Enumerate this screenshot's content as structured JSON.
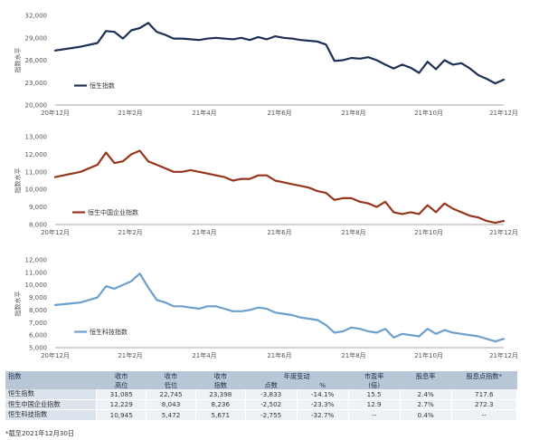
{
  "colors": {
    "hsi": "#1d2f55",
    "hscei": "#96341c",
    "hstech": "#6d9fcd",
    "axis": "#8a8a8a",
    "header_bg": "#b9c6d6",
    "label_bg": "#dbe3ed",
    "cell_bg": "#eef2f7"
  },
  "chart_data": [
    {
      "type": "line",
      "ylabel": "指数水平",
      "ylim": [
        20000,
        32000
      ],
      "yticks": [
        "32,000",
        "29,000",
        "26,000",
        "23,000",
        "20,000"
      ],
      "xticks": [
        "20年12月",
        "21年2月",
        "21年4月",
        "21年6月",
        "21年8月",
        "21年10月",
        "21年12月"
      ],
      "legend": "top-left",
      "grid": false,
      "series": [
        {
          "name": "恒生指数",
          "color": "#1d2f55",
          "x": [
            0,
            3,
            5,
            6,
            7,
            8,
            9,
            10,
            11,
            12,
            13,
            14,
            15,
            16,
            17,
            18,
            19,
            20,
            21,
            22,
            23,
            24,
            25,
            26,
            27,
            28,
            29,
            30,
            31,
            32,
            33,
            34,
            35,
            36,
            37,
            38,
            39,
            40,
            41,
            42,
            43,
            44,
            45,
            46,
            47,
            48,
            49,
            50,
            51,
            52,
            53
          ],
          "y": [
            27300,
            27800,
            28300,
            29900,
            29800,
            28900,
            30000,
            30300,
            31000,
            29800,
            29400,
            28900,
            28900,
            28800,
            28700,
            28900,
            29000,
            28900,
            28800,
            29000,
            28700,
            29100,
            28800,
            29200,
            29000,
            28900,
            28700,
            28600,
            28500,
            28100,
            25900,
            26000,
            26300,
            26200,
            26400,
            26000,
            25400,
            24900,
            25400,
            25000,
            24300,
            25800,
            24800,
            26000,
            25400,
            25600,
            24900,
            24000,
            23500,
            22900,
            23400
          ]
        }
      ]
    },
    {
      "type": "line",
      "ylabel": "指数水平",
      "ylim": [
        8000,
        13000
      ],
      "yticks": [
        "13,000",
        "12,000",
        "11,000",
        "10,000",
        "9,000",
        "8,000"
      ],
      "xticks": [
        "20年12月",
        "21年2月",
        "21年4月",
        "21年6月",
        "21年8月",
        "21年10月",
        "21年12月"
      ],
      "legend": "bottom-left",
      "grid": false,
      "series": [
        {
          "name": "恒生中国企业指数",
          "color": "#96341c",
          "x": [
            0,
            3,
            5,
            6,
            7,
            8,
            9,
            10,
            11,
            12,
            13,
            14,
            15,
            16,
            17,
            18,
            19,
            20,
            21,
            22,
            23,
            24,
            25,
            26,
            27,
            28,
            29,
            30,
            31,
            32,
            33,
            34,
            35,
            36,
            37,
            38,
            39,
            40,
            41,
            42,
            43,
            44,
            45,
            46,
            47,
            48,
            49,
            50,
            51,
            52,
            53
          ],
          "y": [
            10700,
            11000,
            11400,
            12100,
            11500,
            11600,
            12000,
            12200,
            11600,
            11400,
            11200,
            11000,
            11000,
            11100,
            11000,
            10900,
            10800,
            10700,
            10500,
            10600,
            10600,
            10800,
            10800,
            10500,
            10400,
            10300,
            10200,
            10100,
            9900,
            9800,
            9400,
            9500,
            9500,
            9300,
            9200,
            9000,
            9300,
            8700,
            8600,
            8700,
            8600,
            9100,
            8700,
            9200,
            8900,
            8700,
            8500,
            8400,
            8200,
            8100,
            8200
          ]
        }
      ]
    },
    {
      "type": "line",
      "ylabel": "指数水平",
      "ylim": [
        5000,
        12000
      ],
      "yticks": [
        "12,000",
        "11,000",
        "10,000",
        "9,000",
        "8,000",
        "7,000",
        "6,000",
        "5,000"
      ],
      "xticks": [
        "20年12月",
        "21年2月",
        "21年4月",
        "21年6月",
        "21年8月",
        "21年10月",
        "21年12月"
      ],
      "legend": "bottom-left",
      "grid": false,
      "series": [
        {
          "name": "恒生科技指数",
          "color": "#6d9fcd",
          "x": [
            0,
            3,
            5,
            6,
            7,
            8,
            9,
            10,
            11,
            12,
            13,
            14,
            15,
            16,
            17,
            18,
            19,
            20,
            21,
            22,
            23,
            24,
            25,
            26,
            27,
            28,
            29,
            30,
            31,
            32,
            33,
            34,
            35,
            36,
            37,
            38,
            39,
            40,
            41,
            42,
            43,
            44,
            45,
            46,
            47,
            48,
            49,
            50,
            51,
            52,
            53
          ],
          "y": [
            8400,
            8600,
            9000,
            9900,
            9700,
            10000,
            10300,
            10900,
            9800,
            8800,
            8600,
            8300,
            8300,
            8200,
            8100,
            8300,
            8300,
            8100,
            7900,
            7900,
            8000,
            8200,
            8100,
            7800,
            7700,
            7600,
            7400,
            7300,
            7200,
            6800,
            6200,
            6300,
            6600,
            6500,
            6300,
            6200,
            6500,
            5800,
            6100,
            6000,
            5900,
            6500,
            6100,
            6400,
            6200,
            6100,
            6000,
            5900,
            5700,
            5500,
            5700
          ]
        }
      ]
    }
  ],
  "table": {
    "header_top": [
      "指数",
      "收市",
      "收市",
      "收市",
      "年度变动",
      "市盈率",
      "股息率",
      "股息点指数*"
    ],
    "header_bottom": [
      "",
      "高位",
      "低位",
      "指数",
      "点数",
      "%",
      "(倍)",
      "",
      ""
    ],
    "rows": [
      [
        "恒生指数",
        "31,085",
        "22,745",
        "23,398",
        "-3,833",
        "-14.1%",
        "15.5",
        "2.4%",
        "717.6"
      ],
      [
        "恒生中国企业指数",
        "12,229",
        "8,043",
        "8,236",
        "-2,502",
        "-23.3%",
        "12.9",
        "2.7%",
        "272.3"
      ],
      [
        "恒生科技指数",
        "10,945",
        "5,472",
        "5,671",
        "-2,755",
        "-32.7%",
        "--",
        "0.4%",
        "--"
      ]
    ]
  },
  "footnote": "*截至2021年12月30日"
}
